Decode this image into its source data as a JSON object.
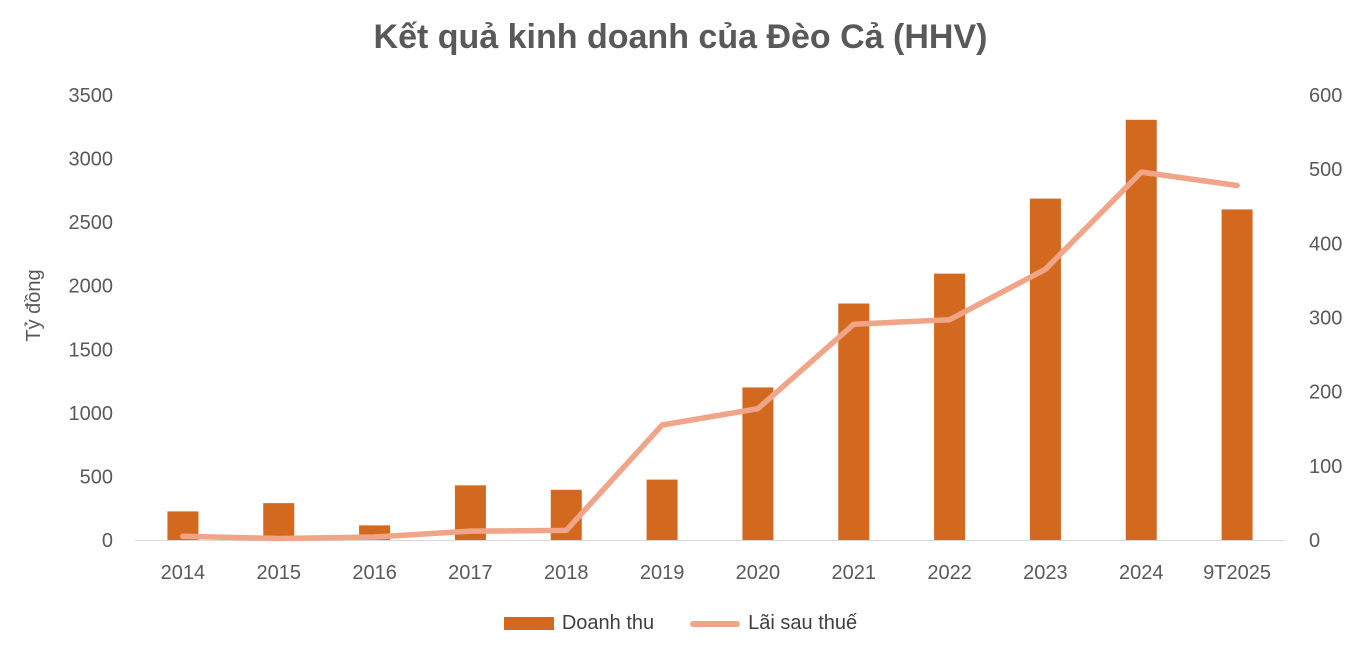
{
  "chart_data": {
    "type": "bar",
    "title": "Kết quả kinh doanh của Đèo Cả (HHV)",
    "ylabel": "Tỷ đồng",
    "categories": [
      "2014",
      "2015",
      "2016",
      "2017",
      "2018",
      "2019",
      "2020",
      "2021",
      "2022",
      "2023",
      "2024",
      "9T2025"
    ],
    "ylim": [
      0,
      3500
    ],
    "y_ticks": [
      "0",
      "500",
      "1000",
      "1500",
      "2000",
      "2500",
      "3000",
      "3500"
    ],
    "y2lim": [
      0,
      600
    ],
    "y2_ticks": [
      "0",
      "100",
      "200",
      "300",
      "400",
      "500",
      "600"
    ],
    "grid": false,
    "legend_position": "bottom",
    "series": [
      {
        "name": "Doanh thu",
        "type": "bar",
        "axis": "left",
        "color": "#d2691e",
        "values": [
          225,
          290,
          115,
          430,
          395,
          475,
          1200,
          1860,
          2095,
          2685,
          3305,
          2600
        ]
      },
      {
        "name": "Lãi sau thuế",
        "type": "line",
        "axis": "right",
        "color": "#f0a488",
        "values": [
          5,
          2,
          4,
          12,
          13,
          155,
          177,
          291,
          297,
          365,
          496,
          478
        ]
      }
    ]
  }
}
